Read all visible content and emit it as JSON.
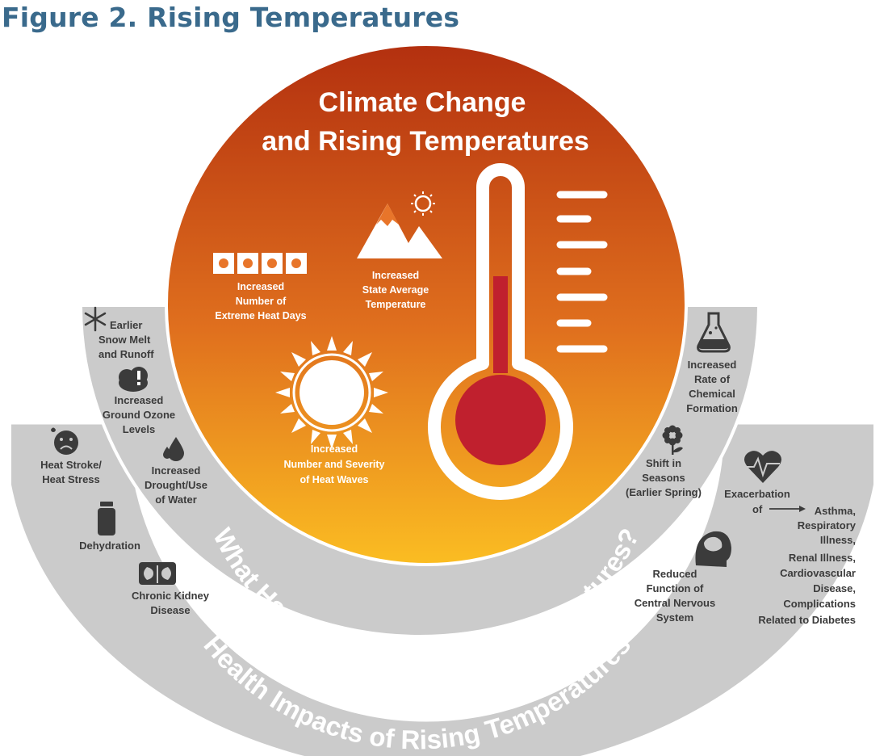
{
  "figure_title": "Figure 2. Rising Temperatures",
  "center_title": [
    "Climate Change",
    "and Rising Temperatures"
  ],
  "center_items": {
    "extreme_heat_days": [
      "Increased",
      "Number of",
      "Extreme Heat Days"
    ],
    "state_average_temp": [
      "Increased",
      "State Average",
      "Temperature"
    ],
    "heat_waves": [
      "Increased",
      "Number and Severity",
      "of Heat Waves"
    ]
  },
  "inner_band": {
    "label": "What Happens With Rising Temperatures?",
    "items": {
      "snow_melt": [
        "Earlier",
        "Snow Melt",
        "and Runoff"
      ],
      "ozone": [
        "Increased",
        "Ground Ozone",
        "Levels"
      ],
      "drought": [
        "Increased",
        "Drought/Use",
        "of Water"
      ],
      "chemical": [
        "Increased",
        "Rate of",
        "Chemical",
        "Formation"
      ],
      "seasons": [
        "Shift in",
        "Seasons",
        "(Earlier Spring)"
      ]
    }
  },
  "outer_band": {
    "label": "Health Impacts of Rising Temperatures",
    "items": {
      "heat_stroke": [
        "Heat Stroke/",
        "Heat Stress"
      ],
      "dehydration": [
        "Dehydration"
      ],
      "kidney": [
        "Chronic Kidney",
        "Disease"
      ],
      "cns": [
        "Reduced",
        "Function of",
        "Central Nervous",
        "System"
      ],
      "exacerbation": [
        "Exacerbation",
        "of"
      ],
      "exacerbation_list": [
        "Asthma,",
        "Respiratory",
        "Illness,",
        "Renal Illness,",
        "Cardiovascular",
        "Disease,",
        "Complications",
        "Related to Diabetes"
      ]
    }
  },
  "icons": [
    "snowflake-icon",
    "cloud-alert-icon",
    "water-drop-icon",
    "flask-icon",
    "flower-icon",
    "sad-face-icon",
    "water-bottle-icon",
    "kidneys-icon",
    "head-brain-icon",
    "heart-pulse-icon",
    "thermometer-icon",
    "sun-icon",
    "mountain-icon",
    "heat-days-icon",
    "arrow-icon"
  ],
  "colors": {
    "title": "#3a6a8c",
    "circle_top": "#b3300f",
    "circle_bottom": "#fbbd22",
    "bands": "#cbcbcb",
    "mercury": "#c0202e"
  }
}
